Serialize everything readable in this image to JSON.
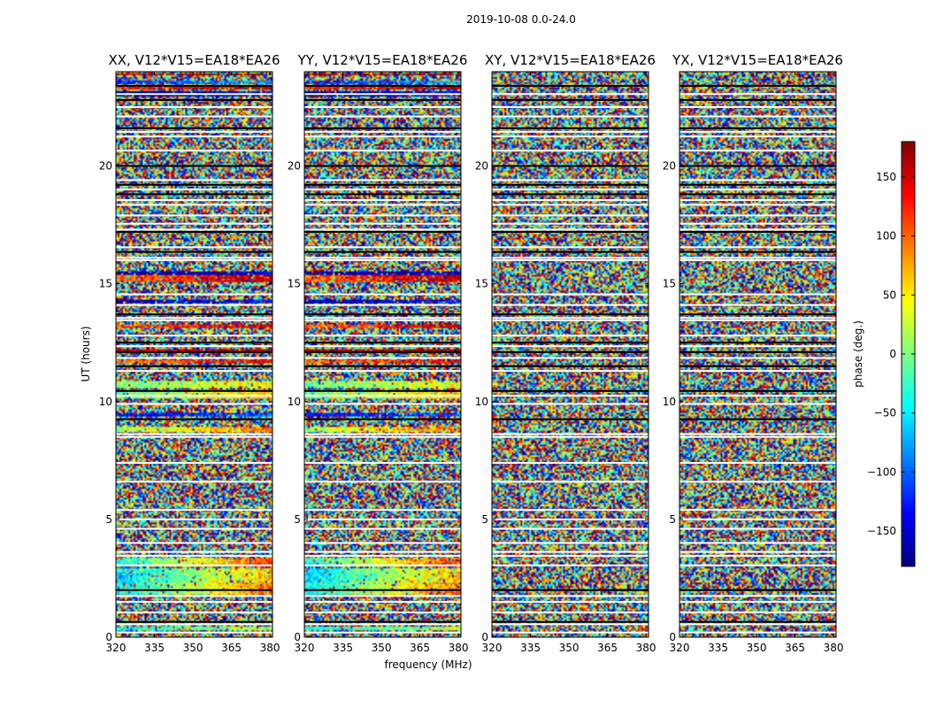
{
  "figure": {
    "suptitle": "2019-10-08 0.0-24.0",
    "xlabel": "frequency (MHz)",
    "ylabel": "UT (hours)",
    "colorbar_label": "phase (deg.)",
    "colorbar_ticks": [
      "150",
      "100",
      "50",
      "0",
      "−50",
      "−100",
      "−150"
    ]
  },
  "chart_data": {
    "type": "heatmap",
    "title": "2019-10-08 0.0-24.0",
    "colormap": "jet",
    "color_range": [
      -180,
      180
    ],
    "xlim": [
      320,
      381
    ],
    "ylim": [
      0,
      24
    ],
    "xticks": [
      320,
      335,
      350,
      365,
      380
    ],
    "yticks": [
      0,
      5,
      10,
      15,
      20
    ],
    "colorbar_ticks": [
      150,
      100,
      50,
      0,
      -50,
      -100,
      -150
    ],
    "white_gaps_hours": [
      0.2,
      0.55,
      1.05,
      1.5,
      1.75,
      3.05,
      3.45,
      3.62,
      4.0,
      4.6,
      5.0,
      5.4,
      6.6,
      7.4,
      8.5,
      8.62,
      9.9,
      10.25,
      11.3,
      11.85,
      12.35,
      12.8,
      13.45,
      13.55,
      14.1,
      14.55,
      16.0,
      16.1,
      16.55,
      17.3,
      17.55,
      17.9,
      18.35,
      18.55,
      19.0,
      19.4,
      20.65,
      21.25,
      21.45,
      22.1,
      22.5,
      23.05
    ],
    "dark_lines_hours": [
      0.65,
      2.0,
      9.25,
      10.45,
      11.5,
      12.1,
      12.5,
      13.7,
      16.35,
      17.2,
      18.8,
      19.2,
      20.0,
      21.6,
      22.8,
      23.4
    ],
    "panels": [
      {
        "title": "XX, V12*V15=EA18*EA26",
        "coherent_bands": [
          {
            "from": 0.3,
            "to": 0.45,
            "phase": -10,
            "slope": 60
          },
          {
            "from": 1.8,
            "to": 2.35,
            "phase": 25,
            "slope": 150
          },
          {
            "from": 2.35,
            "to": 2.9,
            "phase": 5,
            "slope": 130
          },
          {
            "from": 3.0,
            "to": 3.4,
            "phase": 40,
            "slope": 160
          },
          {
            "from": 8.7,
            "to": 8.95,
            "phase": 55,
            "slope": 90
          },
          {
            "from": 9.35,
            "to": 9.55,
            "phase": -120,
            "slope": 40
          },
          {
            "from": 10.15,
            "to": 10.4,
            "phase": 30,
            "slope": 80
          },
          {
            "from": 10.55,
            "to": 10.85,
            "phase": 20,
            "slope": 50
          },
          {
            "from": 11.6,
            "to": 11.75,
            "phase": 120,
            "slope": 60
          },
          {
            "from": 12.05,
            "to": 12.25,
            "phase": 170,
            "slope": 20
          },
          {
            "from": 13.1,
            "to": 13.3,
            "phase": 130,
            "slope": 60
          },
          {
            "from": 14.15,
            "to": 14.3,
            "phase": -150,
            "slope": 40
          },
          {
            "from": 15.05,
            "to": 15.35,
            "phase": 130,
            "slope": 70
          },
          {
            "from": 15.4,
            "to": 15.5,
            "phase": -160,
            "slope": 40
          },
          {
            "from": 22.95,
            "to": 23.15,
            "phase": -160,
            "slope": 60
          },
          {
            "from": 23.25,
            "to": 23.4,
            "phase": 150,
            "slope": 50
          },
          {
            "from": 23.5,
            "to": 23.65,
            "phase": -100,
            "slope": 50
          },
          {
            "from": 23.85,
            "to": 23.95,
            "phase": 170,
            "slope": 20
          }
        ]
      },
      {
        "title": "YY, V12*V15=EA18*EA26",
        "coherent_bands": [
          {
            "from": 0.3,
            "to": 0.45,
            "phase": -10,
            "slope": 60
          },
          {
            "from": 1.8,
            "to": 2.35,
            "phase": 25,
            "slope": 150
          },
          {
            "from": 2.35,
            "to": 2.9,
            "phase": 5,
            "slope": 130
          },
          {
            "from": 3.0,
            "to": 3.4,
            "phase": 40,
            "slope": 160
          },
          {
            "from": 8.7,
            "to": 8.95,
            "phase": 55,
            "slope": 90
          },
          {
            "from": 9.35,
            "to": 9.55,
            "phase": -120,
            "slope": 40
          },
          {
            "from": 10.15,
            "to": 10.4,
            "phase": 30,
            "slope": 80
          },
          {
            "from": 10.55,
            "to": 10.85,
            "phase": 20,
            "slope": 50
          },
          {
            "from": 11.6,
            "to": 11.75,
            "phase": 120,
            "slope": 60
          },
          {
            "from": 12.05,
            "to": 12.25,
            "phase": 170,
            "slope": 20
          },
          {
            "from": 13.1,
            "to": 13.3,
            "phase": 130,
            "slope": 60
          },
          {
            "from": 14.15,
            "to": 14.3,
            "phase": -150,
            "slope": 40
          },
          {
            "from": 15.05,
            "to": 15.35,
            "phase": 130,
            "slope": 70
          },
          {
            "from": 15.4,
            "to": 15.5,
            "phase": -160,
            "slope": 40
          },
          {
            "from": 22.95,
            "to": 23.15,
            "phase": -160,
            "slope": 60
          },
          {
            "from": 23.25,
            "to": 23.4,
            "phase": 150,
            "slope": 50
          },
          {
            "from": 23.5,
            "to": 23.65,
            "phase": -100,
            "slope": 50
          },
          {
            "from": 23.85,
            "to": 23.95,
            "phase": 170,
            "slope": 20
          }
        ]
      },
      {
        "title": "XY, V12*V15=EA18*EA26",
        "coherent_bands": []
      },
      {
        "title": "YX, V12*V15=EA18*EA26",
        "coherent_bands": []
      }
    ]
  }
}
